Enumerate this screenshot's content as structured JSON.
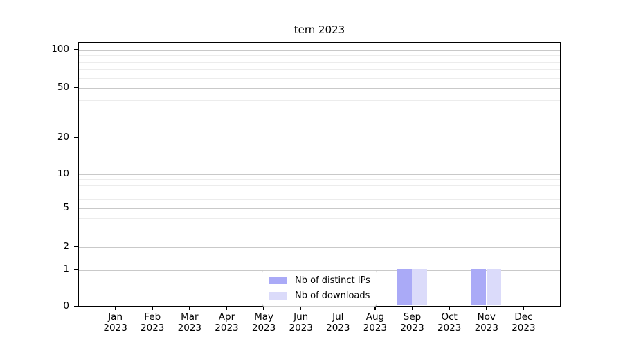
{
  "chart_data": {
    "type": "bar",
    "title": "tern 2023",
    "scale": "symlog",
    "grid": "horizontal-major-and-minor",
    "legend_position": "inside-bottom-center",
    "x_axis": {
      "months": [
        "Jan",
        "Feb",
        "Mar",
        "Apr",
        "May",
        "Jun",
        "Jul",
        "Aug",
        "Sep",
        "Oct",
        "Nov",
        "Dec"
      ],
      "year": "2023"
    },
    "y_axis": {
      "ticks": [
        0,
        1,
        2,
        5,
        10,
        20,
        50,
        100
      ],
      "minor_ticks": [
        3,
        4,
        6,
        7,
        8,
        9,
        30,
        40,
        60,
        70,
        80,
        90
      ],
      "range": [
        0,
        113
      ]
    },
    "series": [
      {
        "name": "Nb of distinct IPs",
        "color": "#aaaaf7",
        "values": [
          0,
          0,
          0,
          0,
          0,
          0,
          0,
          0,
          1,
          0,
          1,
          0
        ]
      },
      {
        "name": "Nb of downloads",
        "color": "#dbdbfa",
        "values": [
          0,
          0,
          0,
          0,
          0,
          0,
          0,
          0,
          1,
          0,
          1,
          0
        ]
      }
    ]
  }
}
